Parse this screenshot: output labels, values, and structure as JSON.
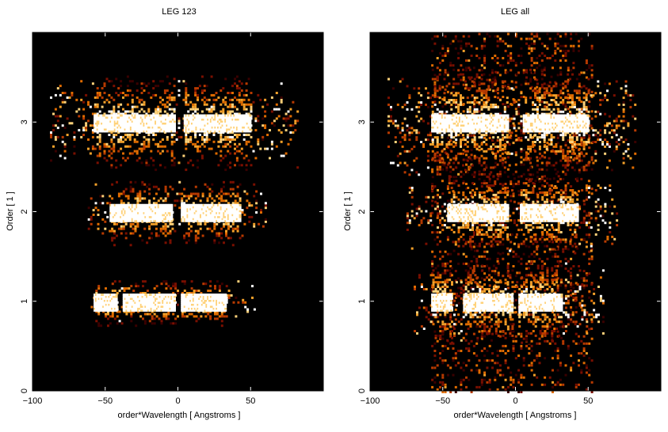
{
  "colors": {
    "background": "#000000",
    "colormap": [
      "#000000",
      "#3a0000",
      "#7a0f00",
      "#b83a00",
      "#e06c00",
      "#f3a12a",
      "#ffd27a",
      "#ffffff"
    ]
  },
  "chart_data": [
    {
      "type": "heatmap",
      "title": "LEG 123",
      "xlabel": "order*Wavelength [ Angstroms ]",
      "ylabel": "Order [ 1 ]",
      "xlim": [
        -100,
        100
      ],
      "ylim": [
        0,
        4
      ],
      "xticks": [
        -100,
        -50,
        0,
        50
      ],
      "xtick_labels": [
        "−100",
        "−50",
        "0",
        "50"
      ],
      "yticks": [
        0,
        1,
        2,
        3
      ],
      "ytick_labels": [
        "0",
        "1",
        "2",
        "3"
      ],
      "bands": [
        {
          "order": 3,
          "x_extent": [
            -88,
            83
          ],
          "y_halfwidth": 0.52,
          "core_x": [
            [
              -58,
              -2
            ],
            [
              4,
              50
            ]
          ],
          "intensity": "high"
        },
        {
          "order": 2,
          "x_extent": [
            -62,
            60
          ],
          "y_halfwidth": 0.36,
          "core_x": [
            [
              -47,
              -4
            ],
            [
              2,
              43
            ]
          ],
          "intensity": "high"
        },
        {
          "order": 1,
          "x_extent": [
            -60,
            53
          ],
          "y_halfwidth": 0.26,
          "core_x": [
            [
              -58,
              -42
            ],
            [
              -38,
              -2
            ],
            [
              2,
              33
            ]
          ],
          "intensity": "high"
        }
      ]
    },
    {
      "type": "heatmap",
      "title": "LEG all",
      "xlabel": "order*Wavelength [ Angstroms ]",
      "ylabel": "Order [ 1 ]",
      "xlim": [
        -100,
        100
      ],
      "ylim": [
        0,
        4
      ],
      "xticks": [
        -100,
        -50,
        0,
        50
      ],
      "xtick_labels": [
        "−100",
        "−50",
        "0",
        "50"
      ],
      "yticks": [
        0,
        1,
        2,
        3
      ],
      "ytick_labels": [
        "0",
        "1",
        "2",
        "3"
      ],
      "bands": [
        {
          "order": 3,
          "x_extent": [
            -88,
            83
          ],
          "y_halfwidth": 0.6,
          "core_x": [
            [
              -58,
              -5
            ],
            [
              5,
              50
            ]
          ],
          "intensity": "high"
        },
        {
          "order": 2,
          "x_extent": [
            -75,
            70
          ],
          "y_halfwidth": 0.45,
          "core_x": [
            [
              -47,
              -5
            ],
            [
              3,
              43
            ]
          ],
          "intensity": "high"
        },
        {
          "order": 1,
          "x_extent": [
            -70,
            60
          ],
          "y_halfwidth": 0.45,
          "core_x": [
            [
              -58,
              -44
            ],
            [
              -36,
              -2
            ],
            [
              2,
              32
            ]
          ],
          "intensity": "high"
        }
      ],
      "background_fill": {
        "x_extent": [
          -58,
          52
        ],
        "y_extent": [
          0,
          4
        ],
        "intensity": "medium"
      }
    }
  ]
}
